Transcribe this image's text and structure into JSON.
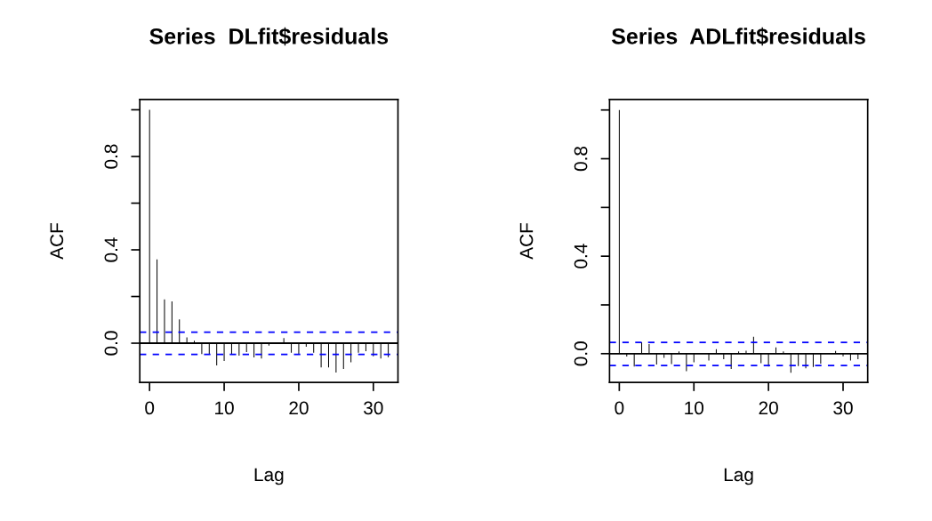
{
  "chart_data": [
    {
      "type": "bar",
      "title": "Series  DLfit$residuals",
      "xlabel": "Lag",
      "ylabel": "ACF",
      "x": [
        0,
        1,
        2,
        3,
        4,
        5,
        6,
        7,
        8,
        9,
        10,
        11,
        12,
        13,
        14,
        15,
        16,
        17,
        18,
        19,
        20,
        21,
        22,
        23,
        24,
        25,
        26,
        27,
        28,
        29,
        30,
        31,
        32
      ],
      "series": [
        {
          "color": "#000000",
          "values": [
            1.0,
            0.359,
            0.188,
            0.179,
            0.102,
            0.025,
            0.011,
            -0.047,
            -0.047,
            -0.095,
            -0.076,
            -0.047,
            -0.053,
            -0.038,
            -0.061,
            -0.066,
            -0.01,
            0.0,
            0.022,
            -0.041,
            -0.047,
            -0.015,
            -0.041,
            -0.104,
            -0.104,
            -0.126,
            -0.11,
            -0.082,
            -0.041,
            -0.034,
            -0.056,
            -0.066,
            -0.06
          ]
        }
      ],
      "xlim": [
        -1.31,
        33.3
      ],
      "ylim": [
        -0.168,
        1.044
      ],
      "xticks": [
        0,
        10,
        20,
        30
      ],
      "yticks": [
        {
          "value": 0,
          "label": "0.0"
        },
        {
          "value": 0.2,
          "label": null
        },
        {
          "value": 0.4,
          "label": "0.4"
        },
        {
          "value": 0.6,
          "label": null
        },
        {
          "value": 0.8,
          "label": "0.8"
        },
        {
          "value": 1.0,
          "label": null
        }
      ],
      "ref_lines": [
        {
          "axis": "y",
          "value": 0,
          "color": "#000000",
          "line_style": "solid"
        },
        {
          "axis": "y",
          "value": 0.047,
          "color": "#0000ff",
          "line_style": "dashed"
        },
        {
          "axis": "y",
          "value": -0.048,
          "color": "#0000ff",
          "line_style": "dashed"
        }
      ],
      "grid": false,
      "legend": false
    },
    {
      "type": "bar",
      "title": "Series  ADLfit$residuals",
      "xlabel": "Lag",
      "ylabel": "ACF",
      "x": [
        0,
        1,
        2,
        3,
        4,
        5,
        6,
        7,
        8,
        9,
        10,
        11,
        12,
        13,
        14,
        15,
        16,
        17,
        18,
        19,
        20,
        21,
        22,
        23,
        24,
        25,
        26,
        27,
        28,
        29,
        30,
        31,
        32
      ],
      "series": [
        {
          "color": "#000000",
          "values": [
            1.0,
            -0.012,
            -0.053,
            0.047,
            0.039,
            -0.045,
            -0.017,
            -0.043,
            0.009,
            -0.072,
            -0.035,
            0.0,
            -0.028,
            0.018,
            -0.023,
            -0.063,
            0.009,
            0.012,
            0.069,
            -0.039,
            -0.053,
            0.026,
            0.009,
            -0.078,
            -0.051,
            -0.06,
            -0.055,
            -0.041,
            0.0,
            0.011,
            -0.011,
            -0.028,
            -0.023
          ]
        }
      ],
      "xlim": [
        -1.31,
        33.3
      ],
      "ylim": [
        -0.118,
        1.043
      ],
      "xticks": [
        0,
        10,
        20,
        30
      ],
      "yticks": [
        {
          "value": 0,
          "label": "0.0"
        },
        {
          "value": 0.2,
          "label": null
        },
        {
          "value": 0.4,
          "label": "0.4"
        },
        {
          "value": 0.6,
          "label": null
        },
        {
          "value": 0.8,
          "label": "0.8"
        },
        {
          "value": 1.0,
          "label": null
        }
      ],
      "ref_lines": [
        {
          "axis": "y",
          "value": 0,
          "color": "#000000",
          "line_style": "solid"
        },
        {
          "axis": "y",
          "value": 0.046,
          "color": "#0000ff",
          "line_style": "dashed"
        },
        {
          "axis": "y",
          "value": -0.049,
          "color": "#0000ff",
          "line_style": "dashed"
        }
      ],
      "grid": false,
      "legend": false
    }
  ]
}
